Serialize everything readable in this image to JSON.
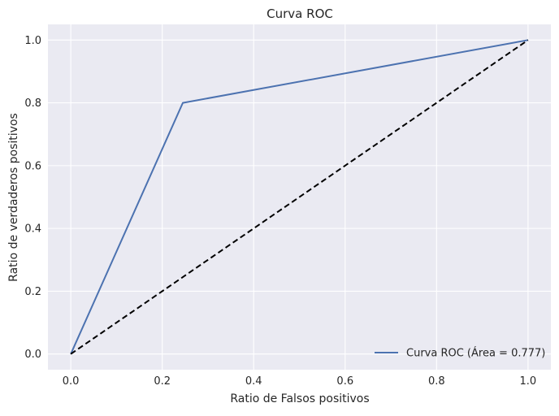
{
  "chart_data": {
    "type": "line",
    "title": "Curva ROC",
    "xlabel": "Ratio de Falsos positivos",
    "ylabel": "Ratio de verdaderos positivos",
    "xlim": [
      -0.05,
      1.05
    ],
    "ylim": [
      -0.05,
      1.05
    ],
    "grid": true,
    "legend_position": "bottom-right",
    "x_ticks": [
      "0.0",
      "0.2",
      "0.4",
      "0.6",
      "0.8",
      "1.0"
    ],
    "y_ticks": [
      "0.0",
      "0.2",
      "0.4",
      "0.6",
      "0.8",
      "1.0"
    ],
    "series": [
      {
        "name": "Curva ROC (Área = 0.777)",
        "x": [
          0.0,
          0.245,
          1.0
        ],
        "y": [
          0.0,
          0.8,
          1.0
        ],
        "color": "#4c72b0",
        "style": "solid"
      },
      {
        "x": [
          0.0,
          1.0
        ],
        "y": [
          0.0,
          1.0
        ],
        "color": "#000000",
        "style": "dashed"
      }
    ]
  },
  "colors": {
    "plot_background": "#eaeaf2",
    "grid": "#ffffff"
  }
}
